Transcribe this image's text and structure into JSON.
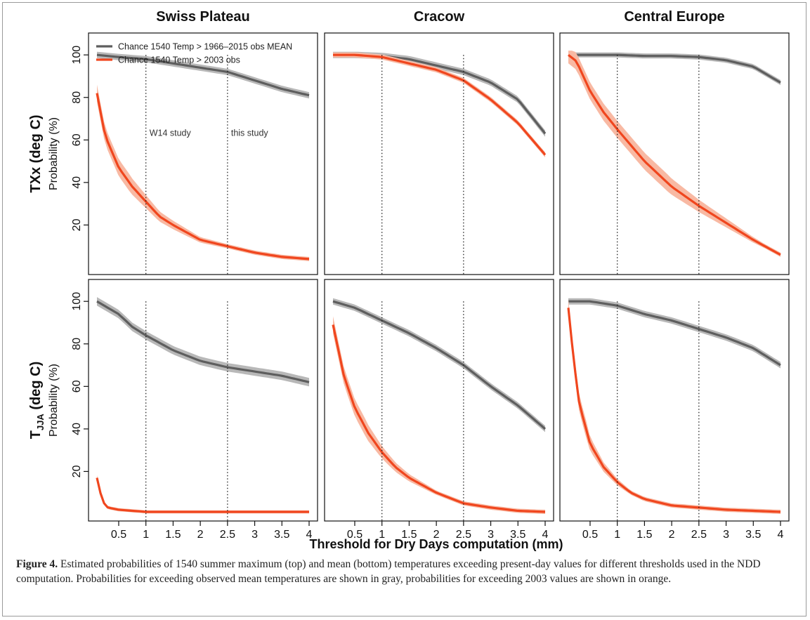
{
  "figure": {
    "caption_label": "Figure 4.",
    "caption_text": " Estimated probabilities of 1540 summer maximum (top) and mean (bottom) temperatures exceeding present-day values for different thresholds used in the NDD computation. Probabilities for exceeding observed mean temperatures are shown in gray, probabilities for exceeding 2003 values are shown in orange."
  },
  "chart_data": {
    "type": "line",
    "column_titles": [
      "Swiss Plateau",
      "Cracow",
      "Central Europe"
    ],
    "row_labels": [
      {
        "main": "TXx (deg C)",
        "sub": ""
      },
      {
        "main": "T",
        "sub": "JJA",
        "suffix": " (deg C)"
      }
    ],
    "ylabel": "Probability (%)",
    "xlabel": "Threshold for Dry Days computation (mm)",
    "xlim": [
      0.1,
      4.0
    ],
    "ylim": [
      0,
      107
    ],
    "x_ticks": [
      0.5,
      1,
      1.5,
      2,
      2.5,
      3,
      3.5,
      4
    ],
    "x_tick_labels": [
      "0.5",
      "1",
      "1.5",
      "2",
      "2.5",
      "3",
      "3.5",
      "4"
    ],
    "y_ticks": [
      20,
      40,
      60,
      80,
      100
    ],
    "y_tick_labels": [
      "20",
      "40",
      "60",
      "80",
      "100"
    ],
    "vlines": [
      1,
      2.5
    ],
    "vline_labels": [
      "W14 study",
      "this study"
    ],
    "legend": {
      "position": "top-left",
      "entries": [
        {
          "label": "Chance 1540 Temp > 1966–2015 obs MEAN",
          "color": "#5e5e5e"
        },
        {
          "label": "Chance 1540 Temp > 2003 obs",
          "color": "#f0461e"
        }
      ]
    },
    "colors": {
      "gray_line": "#5e5e5e",
      "gray_band": "#b8b8b8",
      "orange_line": "#f0461e",
      "orange_band": "#f8b9a3"
    },
    "panels": [
      {
        "row": 0,
        "col": 0,
        "series": [
          {
            "x": [
              0.1,
              0.5,
              1,
              1.5,
              2,
              2.5,
              3,
              3.5,
              4
            ],
            "y": [
              100,
              99,
              98,
              96,
              94,
              92,
              88,
              84,
              81
            ],
            "band": 1.5
          },
          {
            "x": [
              0.1,
              0.25,
              0.5,
              0.75,
              1,
              1.25,
              1.5,
              2,
              2.5,
              3,
              3.5,
              4
            ],
            "y": [
              82,
              62,
              47,
              38,
              31,
              24,
              20,
              13,
              10,
              7,
              5,
              4
            ],
            "band": 4
          }
        ]
      },
      {
        "row": 0,
        "col": 1,
        "series": [
          {
            "x": [
              0.1,
              0.5,
              1,
              1.5,
              2,
              2.5,
              3,
              3.5,
              4
            ],
            "y": [
              100,
              100,
              99.5,
              98,
              95,
              92,
              87,
              79,
              63
            ],
            "band": 1.5
          },
          {
            "x": [
              0.1,
              0.5,
              1,
              1.5,
              2,
              2.5,
              3,
              3.5,
              4
            ],
            "y": [
              100,
              100,
              99,
              96,
              93,
              88,
              79,
              68,
              53
            ],
            "band": 1.2
          }
        ]
      },
      {
        "row": 0,
        "col": 2,
        "series": [
          {
            "x": [
              0.1,
              0.5,
              1,
              1.5,
              2,
              2.5,
              3,
              3.5,
              4
            ],
            "y": [
              100,
              100,
              100,
              99.5,
              99.5,
              99,
              97.5,
              94.5,
              87
            ],
            "band": 1.2
          },
          {
            "x": [
              0.1,
              0.25,
              0.5,
              0.75,
              1,
              1.5,
              2,
              2.5,
              3,
              3.5,
              4
            ],
            "y": [
              100,
              97,
              83,
              73,
              65,
              50,
              38,
              29,
              21,
              13,
              6
            ],
            "band": 4
          }
        ]
      },
      {
        "row": 1,
        "col": 0,
        "series": [
          {
            "x": [
              0.1,
              0.5,
              0.75,
              1,
              1.5,
              2,
              2.5,
              3,
              3.5,
              4
            ],
            "y": [
              100,
              94,
              88,
              84,
              77,
              72,
              69,
              67,
              65,
              62
            ],
            "band": 2
          },
          {
            "x": [
              0.1,
              0.2,
              0.3,
              0.5,
              0.75,
              1,
              1.5,
              2,
              2.5,
              3,
              3.5,
              4
            ],
            "y": [
              17,
              6,
              3,
              2,
              1.5,
              1,
              1,
              1,
              1,
              1,
              1,
              1
            ],
            "band": 3
          }
        ]
      },
      {
        "row": 1,
        "col": 1,
        "series": [
          {
            "x": [
              0.1,
              0.5,
              1,
              1.5,
              2,
              2.5,
              3,
              3.5,
              4
            ],
            "y": [
              100,
              97,
              91,
              85,
              78,
              70,
              60,
              51,
              40
            ],
            "band": 1.5
          },
          {
            "x": [
              0.1,
              0.3,
              0.5,
              0.75,
              1,
              1.25,
              1.5,
              2,
              2.5,
              3,
              3.5,
              4
            ],
            "y": [
              89,
              65,
              50,
              38,
              29,
              22,
              17,
              10,
              5,
              3,
              1.5,
              1
            ],
            "band": 4
          }
        ]
      },
      {
        "row": 1,
        "col": 2,
        "series": [
          {
            "x": [
              0.1,
              0.5,
              1,
              1.5,
              2,
              2.5,
              3,
              3.5,
              4
            ],
            "y": [
              100,
              100,
              98,
              94,
              91,
              87,
              83,
              78,
              70
            ],
            "band": 1.5
          },
          {
            "x": [
              0.1,
              0.2,
              0.3,
              0.5,
              0.75,
              1,
              1.25,
              1.5,
              2,
              2.5,
              3,
              3.5,
              4
            ],
            "y": [
              97,
              72,
              52,
              33,
              22,
              15,
              10,
              7,
              4,
              3,
              2,
              1.5,
              1
            ],
            "band": 4
          }
        ]
      }
    ]
  }
}
